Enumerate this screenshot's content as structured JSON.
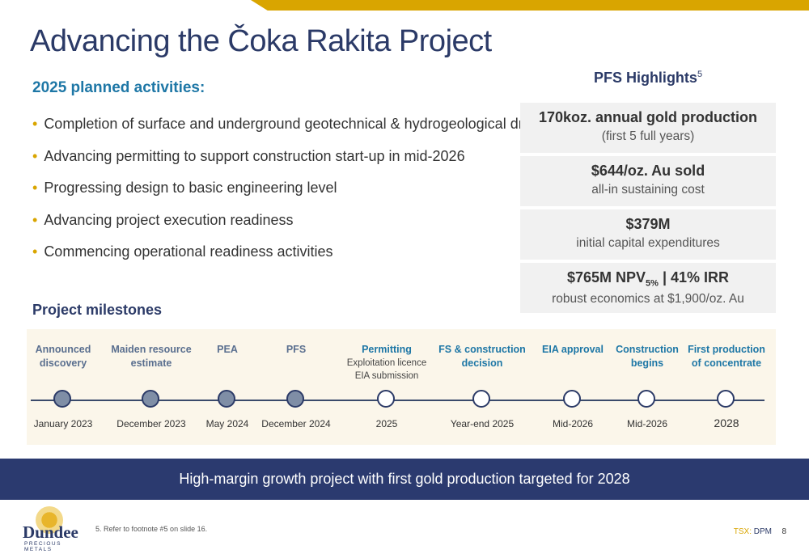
{
  "title": "Advancing the Čoka Rakita Project",
  "activities": {
    "heading": "2025 planned activities:",
    "items": [
      "Completion of surface and underground geotechnical & hydrogeological drilling",
      "Advancing permitting to support construction start-up in mid-2026",
      "Progressing design to basic engineering level",
      "Advancing project execution readiness",
      "Commencing operational readiness activities"
    ]
  },
  "pfs": {
    "heading": "PFS Highlights",
    "heading_sup": "5",
    "boxes": [
      {
        "main": "170koz. annual gold production",
        "sub": "(first 5 full years)"
      },
      {
        "main": "$644/oz. Au sold",
        "sub": "all-in sustaining cost"
      },
      {
        "main": "$379M",
        "sub": "initial capital expenditures"
      },
      {
        "main_a": "$765M NPV",
        "main_sub": "5%",
        "main_b": " | 41% IRR",
        "sub": "robust economics at $1,900/oz. Au"
      }
    ]
  },
  "milestones": {
    "heading": "Project milestones",
    "items": [
      {
        "label": "Announced discovery",
        "note": "",
        "date": "January 2023",
        "status": "done",
        "color": "#5a6f8f"
      },
      {
        "label": "Maiden resource estimate",
        "note": "",
        "date": "December 2023",
        "status": "done",
        "color": "#5a6f8f"
      },
      {
        "label": "PEA",
        "note": "",
        "date": "May 2024",
        "status": "done",
        "color": "#5a6f8f"
      },
      {
        "label": "PFS",
        "note": "",
        "date": "December 2024",
        "status": "done",
        "color": "#5a6f8f"
      },
      {
        "label": "Permitting",
        "note_1": "Exploitation licence",
        "note_2": "EIA submission",
        "date": "2025",
        "status": "todo",
        "color": "#1e77a6"
      },
      {
        "label": "FS & construction decision",
        "note": "",
        "date": "Year-end 2025",
        "status": "todo",
        "color": "#1e77a6"
      },
      {
        "label": "EIA approval",
        "note": "",
        "date": "Mid-2026",
        "status": "todo",
        "color": "#1e77a6"
      },
      {
        "label": "Construction begins",
        "note": "",
        "date": "Mid-2026",
        "status": "todo",
        "color": "#1e77a6"
      },
      {
        "label": "First production of concentrate",
        "note": "",
        "date": "2028",
        "status": "todo",
        "color": "#1e77a6"
      }
    ]
  },
  "banner": "High-margin growth project with first gold production targeted for 2028",
  "footer": {
    "logo_word": "Dundee",
    "logo_sub": "PRECIOUS METALS",
    "footnote": "5. Refer to footnote  #5 on slide 16.",
    "exchange": "TSX:",
    "ticker": "DPM",
    "page": "8"
  },
  "colors": {
    "gold": "#d9a500",
    "navy": "#2b3a67",
    "blue": "#1e77a6"
  }
}
